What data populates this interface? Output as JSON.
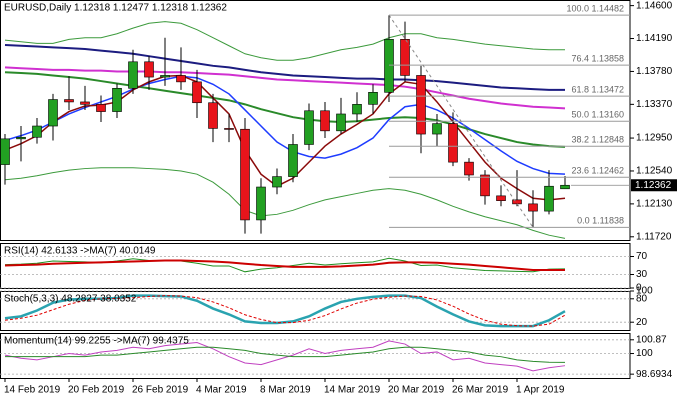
{
  "chart_data": [
    {
      "type": "candlestick",
      "title": "EURUSD,Daily  1.12318 1.12477 1.12318 1.12362",
      "categories": [
        "14 Feb 2019",
        null,
        null,
        null,
        "20 Feb 2019",
        null,
        null,
        null,
        "26 Feb 2019",
        null,
        null,
        null,
        "4 Mar 2019",
        null,
        null,
        null,
        "8 Mar 2019",
        null,
        null,
        null,
        "14 Mar 2019",
        null,
        null,
        null,
        "20 Mar 2019",
        null,
        null,
        null,
        "26 Mar 2019",
        null,
        null,
        null,
        "1 Apr 2019",
        null,
        null,
        null
      ],
      "open": [
        1.1262,
        1.1294,
        1.1296,
        1.131,
        1.1343,
        1.134,
        1.1337,
        1.1328,
        1.1357,
        1.139,
        1.1371,
        1.1373,
        1.1365,
        1.1339,
        1.1307,
        1.1306,
        1.1193,
        1.1234,
        1.1247,
        1.1287,
        1.1329,
        1.1304,
        1.1325,
        1.1337,
        1.1352,
        1.1418,
        1.1373,
        1.13,
        1.1313,
        1.1265,
        1.1249,
        1.1223,
        1.1218,
        1.1213,
        1.1204,
        1.12318
      ],
      "high": [
        1.13,
        1.131,
        1.132,
        1.135,
        1.1372,
        1.136,
        1.1348,
        1.1363,
        1.1405,
        1.1397,
        1.142,
        1.1408,
        1.138,
        1.135,
        1.1325,
        1.132,
        1.1245,
        1.1257,
        1.13,
        1.1338,
        1.134,
        1.1345,
        1.1352,
        1.1362,
        1.1448,
        1.144,
        1.1385,
        1.1325,
        1.1327,
        1.127,
        1.1255,
        1.1236,
        1.1255,
        1.123,
        1.1255,
        1.12477
      ],
      "low": [
        1.1237,
        1.1266,
        1.1288,
        1.1292,
        1.133,
        1.133,
        1.1315,
        1.132,
        1.135,
        1.1355,
        1.136,
        1.1355,
        1.132,
        1.129,
        1.129,
        1.1176,
        1.1176,
        1.1225,
        1.124,
        1.128,
        1.1295,
        1.13,
        1.1315,
        1.1325,
        1.134,
        1.1365,
        1.1276,
        1.1285,
        1.126,
        1.1242,
        1.1212,
        1.121,
        1.121,
        1.11838,
        1.12,
        1.12318
      ],
      "close": [
        1.1294,
        1.1296,
        1.131,
        1.1343,
        1.134,
        1.1337,
        1.1328,
        1.1357,
        1.139,
        1.1371,
        1.1373,
        1.1365,
        1.1339,
        1.1307,
        1.1306,
        1.1193,
        1.1234,
        1.1247,
        1.1287,
        1.1329,
        1.1304,
        1.1325,
        1.1337,
        1.1352,
        1.1418,
        1.1373,
        1.13,
        1.1313,
        1.1265,
        1.1249,
        1.1223,
        1.1217,
        1.1213,
        1.1204,
        1.1235,
        1.12362
      ],
      "up_color": "#22a022",
      "down_color": "#e8141b",
      "series": [
        {
          "color": "#1c1c80",
          "width": 2,
          "values": [
            1.1411,
            1.141,
            1.1409,
            1.1408,
            1.1407,
            1.1406,
            1.1404,
            1.1402,
            1.14,
            1.1397,
            1.1394,
            1.1391,
            1.1388,
            1.1385,
            1.1383,
            1.138,
            1.1377,
            1.1375,
            1.1373,
            1.1372,
            1.1371,
            1.137,
            1.1369,
            1.1369,
            1.1368,
            1.1368,
            1.1367,
            1.1366,
            1.1364,
            1.1362,
            1.136,
            1.1358,
            1.1357,
            1.1356,
            1.1355,
            1.1355
          ]
        },
        {
          "color": "#d030d0",
          "width": 2,
          "values": [
            1.1383,
            1.1382,
            1.1381,
            1.138,
            1.138,
            1.1379,
            1.1379,
            1.1378,
            1.1378,
            1.1378,
            1.1377,
            1.1377,
            1.1376,
            1.1375,
            1.1374,
            1.1372,
            1.137,
            1.1368,
            1.1367,
            1.1366,
            1.1365,
            1.1364,
            1.1363,
            1.1362,
            1.1361,
            1.1359,
            1.1356,
            1.1352,
            1.1348,
            1.1344,
            1.1341,
            1.1338,
            1.1336,
            1.1334,
            1.1333,
            1.1332
          ]
        },
        {
          "color": "#2a8a2a",
          "width": 2,
          "values": [
            1.1377,
            1.1376,
            1.1375,
            1.1373,
            1.1371,
            1.1369,
            1.1366,
            1.1363,
            1.136,
            1.1357,
            1.1354,
            1.1351,
            1.1348,
            1.1345,
            1.1342,
            1.1337,
            1.1331,
            1.1326,
            1.1321,
            1.1318,
            1.1316,
            1.1315,
            1.1316,
            1.1318,
            1.132,
            1.1321,
            1.132,
            1.1317,
            1.1312,
            1.1306,
            1.13,
            1.1295,
            1.129,
            1.1287,
            1.1285,
            1.1284
          ]
        },
        {
          "color": "#1e3cff",
          "width": 1.5,
          "values": [
            1.1292,
            1.1298,
            1.1305,
            1.1315,
            1.1325,
            1.1333,
            1.134,
            1.1347,
            1.1356,
            1.1363,
            1.1368,
            1.1372,
            1.137,
            1.1362,
            1.135,
            1.133,
            1.131,
            1.129,
            1.1278,
            1.1272,
            1.127,
            1.1275,
            1.1283,
            1.1295,
            1.1318,
            1.1334,
            1.1337,
            1.133,
            1.132,
            1.1307,
            1.1293,
            1.1279,
            1.1266,
            1.1257,
            1.1251,
            1.125
          ]
        },
        {
          "color": "#8b0a0a",
          "width": 1.5,
          "values": [
            1.128,
            1.1288,
            1.1298,
            1.1315,
            1.1328,
            1.1335,
            1.1336,
            1.134,
            1.1355,
            1.1365,
            1.1372,
            1.1373,
            1.1365,
            1.1345,
            1.1325,
            1.128,
            1.125,
            1.1235,
            1.1245,
            1.1265,
            1.1285,
            1.13,
            1.1312,
            1.1325,
            1.135,
            1.1365,
            1.1362,
            1.134,
            1.1315,
            1.129,
            1.1265,
            1.1245,
            1.1232,
            1.122,
            1.1218,
            1.122
          ]
        },
        {
          "color": "#3c9a3c",
          "width": 1,
          "values": [
            1.1417,
            1.1415,
            1.1413,
            1.1413,
            1.1418,
            1.142,
            1.142,
            1.1425,
            1.1432,
            1.1438,
            1.144,
            1.1438,
            1.143,
            1.142,
            1.141,
            1.14,
            1.1395,
            1.1392,
            1.1392,
            1.1395,
            1.14,
            1.1405,
            1.1408,
            1.1412,
            1.142,
            1.1425,
            1.1425,
            1.142,
            1.1418,
            1.1415,
            1.1412,
            1.141,
            1.1408,
            1.1406,
            1.1405,
            1.1405
          ]
        },
        {
          "color": "#3c9a3c",
          "width": 1,
          "values": [
            1.1243,
            1.1245,
            1.1248,
            1.1252,
            1.1255,
            1.1257,
            1.1258,
            1.1258,
            1.1258,
            1.1257,
            1.1256,
            1.1254,
            1.125,
            1.124,
            1.1225,
            1.1205,
            1.1198,
            1.12,
            1.1205,
            1.1212,
            1.1218,
            1.1222,
            1.1226,
            1.123,
            1.1232,
            1.123,
            1.1225,
            1.1218,
            1.121,
            1.1203,
            1.1197,
            1.1192,
            1.1187,
            1.118,
            1.1174,
            1.117
          ]
        }
      ],
      "ylim": [
        1.1168,
        1.1467
      ],
      "yticks": [
        {
          "value": 1.146,
          "label": "1.14600"
        },
        {
          "value": 1.1419,
          "label": "1.14190"
        },
        {
          "value": 1.1378,
          "label": "1.13780"
        },
        {
          "value": 1.1337,
          "label": "1.13370"
        },
        {
          "value": 1.1295,
          "label": "1.12950"
        },
        {
          "value": 1.1254,
          "label": "1.12540"
        },
        {
          "value": 1.1213,
          "label": "1.12130"
        },
        {
          "value": 1.1172,
          "label": "1.11720"
        }
      ],
      "grid": false,
      "fib_levels": [
        {
          "value": 1.14482,
          "label": "100.0 1.14482"
        },
        {
          "value": 1.13858,
          "label": "76.4 1.13858"
        },
        {
          "value": 1.13472,
          "label": "61.8 1.13472"
        },
        {
          "value": 1.1316,
          "label": "50.0 1.13160"
        },
        {
          "value": 1.12848,
          "label": "38.2 1.12848"
        },
        {
          "value": 1.12462,
          "label": "23.6 1.12462"
        },
        {
          "value": 1.11838,
          "label": "0.0 1.11838"
        }
      ],
      "current_price": 1.12362
    },
    {
      "type": "line",
      "title": "RSI(14) 42.6133 ->MA(7) 40.0149",
      "series": [
        {
          "color": "#1f8f1f",
          "width": 1,
          "values": [
            52,
            53,
            55,
            60,
            59,
            58,
            56,
            60,
            65,
            61,
            61,
            60,
            55,
            49,
            49,
            36,
            42,
            45,
            50,
            55,
            51,
            54,
            56,
            58,
            66,
            60,
            50,
            51,
            45,
            42,
            39,
            38,
            37,
            36,
            42,
            42.61
          ]
        },
        {
          "color": "#cc0000",
          "width": 2,
          "values": [
            50,
            51,
            52,
            54,
            55,
            56,
            57,
            58,
            59,
            60,
            61,
            61,
            60,
            59,
            57,
            54,
            51,
            49,
            47,
            47,
            47,
            48,
            50,
            52,
            56,
            57,
            57,
            56,
            54,
            52,
            49,
            46,
            43,
            40,
            40,
            40.01
          ]
        }
      ],
      "ylim": [
        0,
        100
      ],
      "yticks": [
        70,
        30,
        0
      ],
      "grid": true
    },
    {
      "type": "line",
      "title": "Stoch(5,3,3) 48.2827 38.0352",
      "series": [
        {
          "color": "#2aa3b0",
          "width": 2.5,
          "values": [
            30,
            35,
            50,
            70,
            78,
            80,
            80,
            82,
            88,
            88,
            87,
            86,
            75,
            55,
            40,
            22,
            18,
            18,
            22,
            35,
            55,
            72,
            80,
            85,
            88,
            88,
            82,
            60,
            40,
            22,
            12,
            10,
            10,
            10,
            25,
            48.28
          ]
        },
        {
          "color": "#e00000",
          "width": 1,
          "dashed": true,
          "values": [
            25,
            30,
            38,
            52,
            66,
            76,
            80,
            81,
            83,
            86,
            88,
            87,
            83,
            72,
            57,
            39,
            27,
            19,
            19,
            25,
            37,
            54,
            69,
            79,
            84,
            87,
            86,
            77,
            61,
            41,
            25,
            15,
            11,
            10,
            15,
            38.04
          ]
        }
      ],
      "ylim": [
        0,
        100
      ],
      "yticks": [
        100,
        80,
        20
      ],
      "grid": true
    },
    {
      "type": "line",
      "title": "Momentum(14) 99.2255 ->MA(7) 99.4375",
      "series": [
        {
          "color": "#c040c0",
          "width": 1,
          "values": [
            99.9,
            99.7,
            99.6,
            99.8,
            100.0,
            99.9,
            100.1,
            100.2,
            100.4,
            100.3,
            100.5,
            100.6,
            100.7,
            100.3,
            99.8,
            99.4,
            99.3,
            99.6,
            99.9,
            100.3,
            100.0,
            100.2,
            100.3,
            100.4,
            100.8,
            100.6,
            100.0,
            100.1,
            99.6,
            99.7,
            99.4,
            99.3,
            99.2,
            98.9,
            99.1,
            99.23
          ]
        },
        {
          "color": "#2a8a2a",
          "width": 1,
          "values": [
            99.8,
            99.8,
            99.8,
            99.8,
            99.8,
            99.8,
            99.9,
            99.9,
            100.0,
            100.1,
            100.2,
            100.3,
            100.4,
            100.4,
            100.3,
            100.2,
            100.0,
            99.9,
            99.8,
            99.8,
            99.8,
            99.9,
            100.0,
            100.1,
            100.3,
            100.4,
            100.4,
            100.3,
            100.2,
            100.1,
            99.9,
            99.8,
            99.6,
            99.5,
            99.45,
            99.44
          ]
        }
      ],
      "ylim": [
        98.45,
        101.3
      ],
      "yticks": [
        100.87,
        100,
        98.6934
      ],
      "grid": true
    }
  ]
}
